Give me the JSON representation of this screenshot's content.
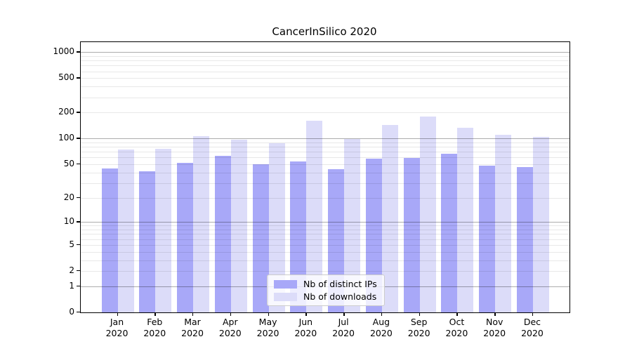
{
  "chart_data": {
    "type": "bar",
    "title": "CancerInSilico 2020",
    "categories": [
      "Jan 2020",
      "Feb 2020",
      "Mar 2020",
      "Apr 2020",
      "May 2020",
      "Jun 2020",
      "Jul 2020",
      "Aug 2020",
      "Sep 2020",
      "Oct 2020",
      "Nov 2020",
      "Dec 2020"
    ],
    "series": [
      {
        "name": "Nb of distinct IPs",
        "color": "#a8a8f8",
        "values": [
          45,
          41,
          52,
          63,
          50,
          54,
          44,
          58,
          59,
          66,
          48,
          46
        ]
      },
      {
        "name": "Nb of downloads",
        "color": "#dcdcf9",
        "values": [
          75,
          76,
          107,
          97,
          89,
          160,
          98,
          145,
          180,
          134,
          111,
          105
        ]
      }
    ],
    "y_axis": {
      "scale": "log10(value+1)",
      "ylim": [
        0,
        1000
      ],
      "tick_values": [
        0,
        1,
        2,
        5,
        10,
        20,
        50,
        100,
        200,
        500,
        1000
      ],
      "tick_labels": [
        "0",
        "1",
        "2",
        "5",
        "10",
        "20",
        "50",
        "100",
        "200",
        "500",
        "1000"
      ],
      "major_gridlines": [
        1,
        10,
        100,
        1000
      ],
      "minor_gridlines": [
        2,
        3,
        4,
        5,
        6,
        7,
        8,
        9,
        20,
        30,
        40,
        50,
        60,
        70,
        80,
        90,
        200,
        300,
        400,
        500,
        600,
        700,
        800,
        900
      ]
    },
    "x_axis": {
      "tick_label_lines": 2
    },
    "legend": {
      "position": "lower-center",
      "items": [
        "Nb of distinct IPs",
        "Nb of downloads"
      ]
    },
    "grid": true
  }
}
